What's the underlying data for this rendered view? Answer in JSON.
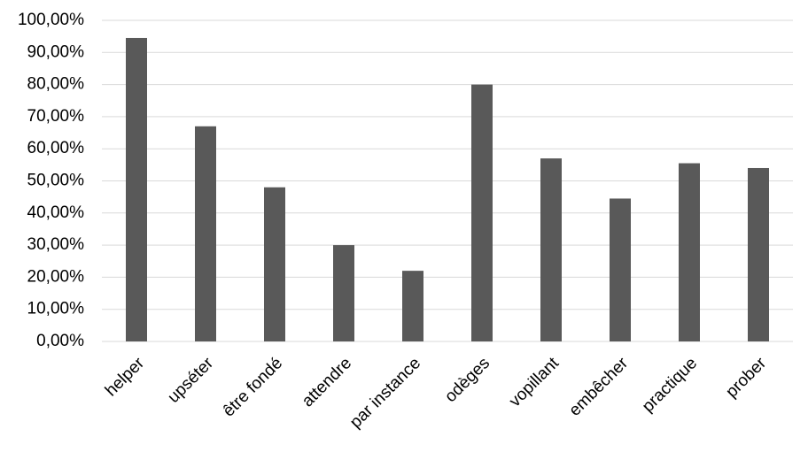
{
  "chart_data": {
    "type": "bar",
    "categories": [
      "helper",
      "upséter",
      "être fondé",
      "attendre",
      "par instance",
      "odèges",
      "vopillant",
      "embêcher",
      "practique",
      "prober"
    ],
    "values": [
      94.5,
      67,
      48,
      30,
      22,
      80,
      57,
      44.5,
      55.5,
      54
    ],
    "color": "#595959",
    "ylim": [
      0,
      100
    ],
    "yticks": [
      {
        "value": 0,
        "label": "0,00%"
      },
      {
        "value": 10,
        "label": "10,00%"
      },
      {
        "value": 20,
        "label": "20,00%"
      },
      {
        "value": 30,
        "label": "30,00%"
      },
      {
        "value": 40,
        "label": "40,00%"
      },
      {
        "value": 50,
        "label": "50,00%"
      },
      {
        "value": 60,
        "label": "60,00%"
      },
      {
        "value": 70,
        "label": "70,00%"
      },
      {
        "value": 80,
        "label": "80,00%"
      },
      {
        "value": 90,
        "label": "90,00%"
      },
      {
        "value": 100,
        "label": "100,00%"
      }
    ],
    "grid": true
  }
}
